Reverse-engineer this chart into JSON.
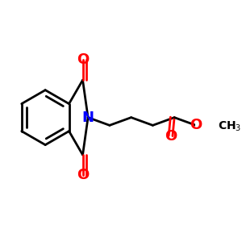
{
  "bg_color": "#FFFFFF",
  "bond_color": "#000000",
  "N_color": "#0000FF",
  "O_color": "#FF0000",
  "line_width": 2.0,
  "font_size_atom": 13,
  "font_size_ch3": 10,
  "xlim": [
    -0.05,
    1.05
  ],
  "ylim": [
    0.05,
    0.95
  ]
}
